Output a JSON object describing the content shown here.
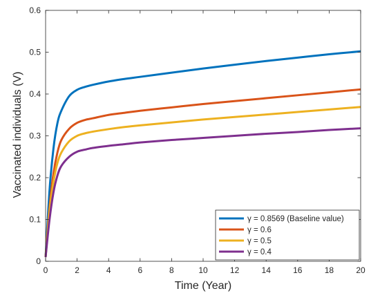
{
  "chart_data": {
    "type": "line",
    "xlabel": "Time (Year)",
    "ylabel": "Vaccinated individuals (V)",
    "xlim": [
      0,
      20
    ],
    "ylim": [
      0,
      0.6
    ],
    "xticks": [
      0,
      2,
      4,
      6,
      8,
      10,
      12,
      14,
      16,
      18,
      20
    ],
    "xtick_labels": [
      "0",
      "2",
      "4",
      "6",
      "8",
      "10",
      "12",
      "14",
      "16",
      "18",
      "20"
    ],
    "yticks": [
      0,
      0.1,
      0.2,
      0.3,
      0.4,
      0.5,
      0.6
    ],
    "ytick_labels": [
      "0",
      "0.1",
      "0.2",
      "0.3",
      "0.4",
      "0.5",
      "0.6"
    ],
    "grid": false,
    "legend_position": "bottom-right",
    "x": [
      0,
      0.25,
      0.5,
      0.75,
      1,
      1.5,
      2,
      2.5,
      3,
      4,
      5,
      6,
      8,
      10,
      12,
      14,
      16,
      18,
      20
    ],
    "series": [
      {
        "name": "γ = 0.8569 (Baseline value)",
        "color": "#0072bd",
        "values": [
          0.01,
          0.17,
          0.27,
          0.33,
          0.36,
          0.395,
          0.41,
          0.417,
          0.422,
          0.43,
          0.436,
          0.441,
          0.451,
          0.461,
          0.47,
          0.479,
          0.487,
          0.495,
          0.502
        ]
      },
      {
        "name": "γ = 0.6",
        "color": "#d95319",
        "values": [
          0.01,
          0.13,
          0.21,
          0.26,
          0.29,
          0.317,
          0.331,
          0.338,
          0.342,
          0.35,
          0.355,
          0.36,
          0.368,
          0.376,
          0.383,
          0.39,
          0.397,
          0.404,
          0.411
        ]
      },
      {
        "name": "γ = 0.5",
        "color": "#edb120",
        "values": [
          0.01,
          0.12,
          0.19,
          0.235,
          0.26,
          0.287,
          0.3,
          0.306,
          0.31,
          0.316,
          0.321,
          0.325,
          0.332,
          0.339,
          0.345,
          0.351,
          0.357,
          0.363,
          0.369
        ]
      },
      {
        "name": "γ = 0.4",
        "color": "#7e2f8e",
        "values": [
          0.01,
          0.1,
          0.165,
          0.205,
          0.228,
          0.25,
          0.262,
          0.267,
          0.271,
          0.276,
          0.28,
          0.284,
          0.29,
          0.295,
          0.3,
          0.305,
          0.309,
          0.314,
          0.318
        ]
      }
    ]
  }
}
